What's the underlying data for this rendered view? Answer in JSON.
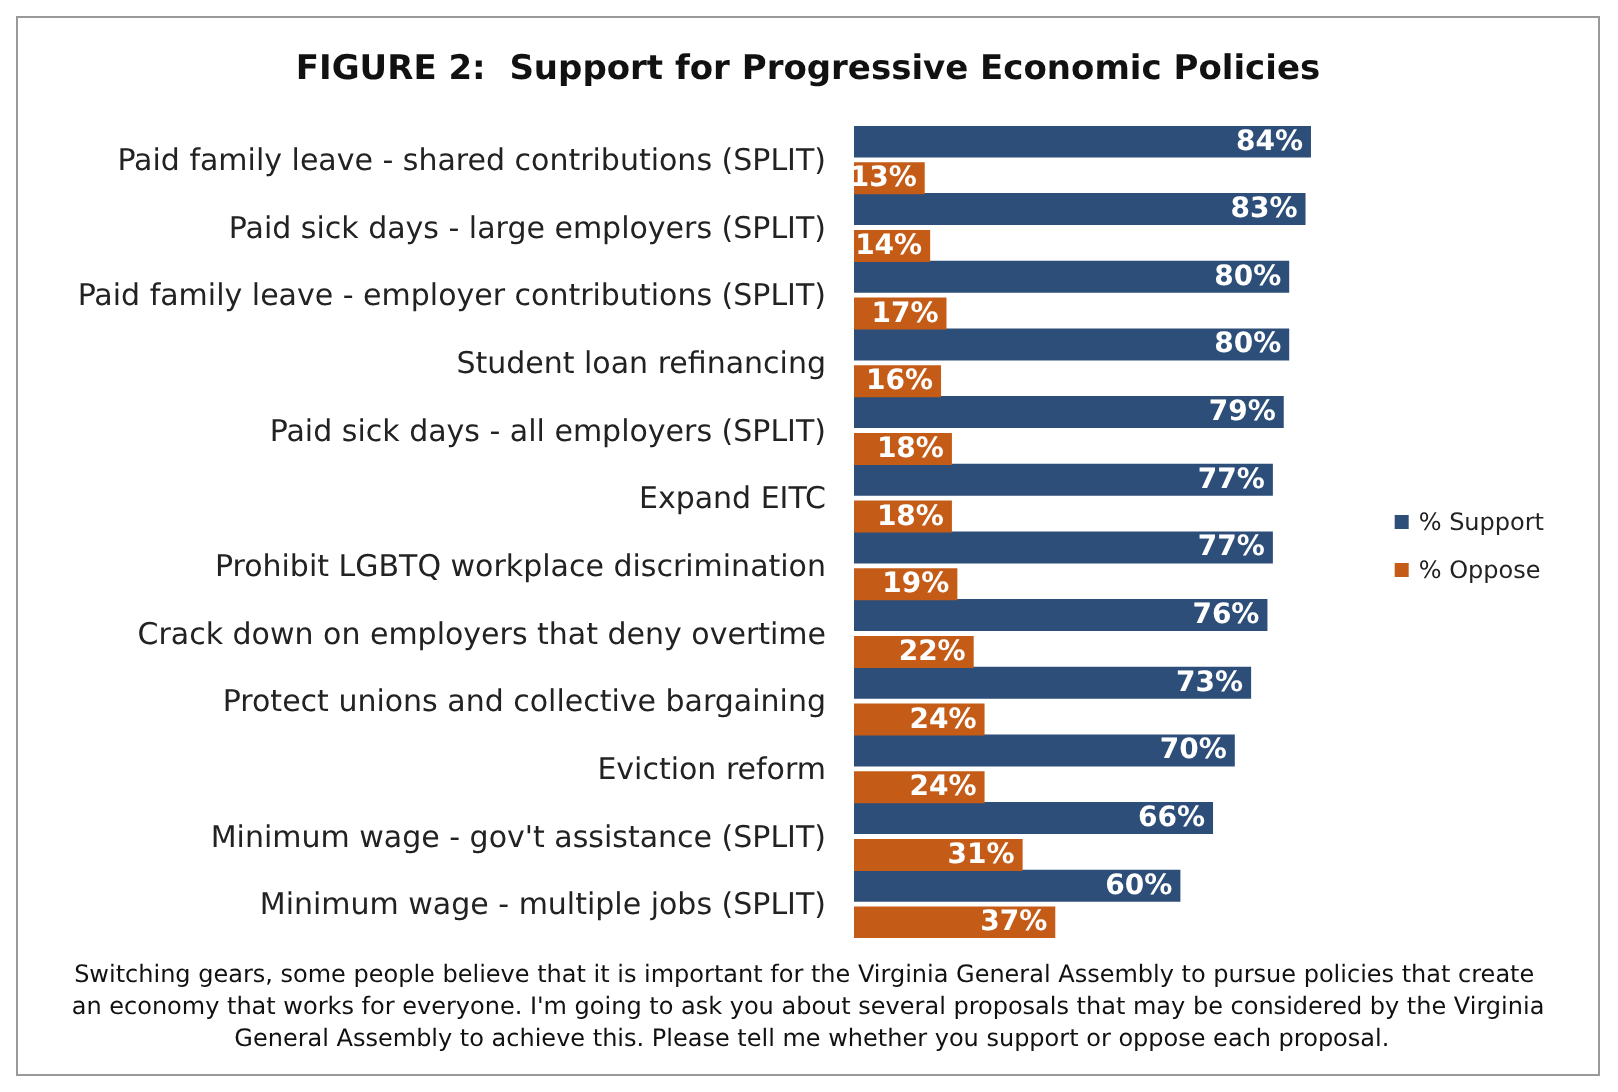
{
  "chart_data": {
    "type": "bar",
    "orientation": "horizontal",
    "title": "FIGURE 2:  Support for Progressive Economic Policies",
    "categories": [
      "Paid family leave - shared contributions (SPLIT)",
      "Paid sick days - large employers (SPLIT)",
      "Paid family leave - employer contributions (SPLIT)",
      "Student loan refinancing",
      "Paid sick days - all employers (SPLIT)",
      "Expand EITC",
      "Prohibit LGBTQ workplace discrimination",
      "Crack down on employers that deny overtime",
      "Protect unions and collective bargaining",
      "Eviction reform",
      "Minimum wage - gov't assistance (SPLIT)",
      "Minimum wage - multiple jobs (SPLIT)"
    ],
    "series": [
      {
        "name": "% Support",
        "color": "#2d4e79",
        "values": [
          84,
          83,
          80,
          80,
          79,
          77,
          77,
          76,
          73,
          70,
          66,
          60
        ],
        "value_labels": [
          "84%",
          "83%",
          "80%",
          "80%",
          "79%",
          "77%",
          "77%",
          "76%",
          "73%",
          "70%",
          "66%",
          "60%"
        ]
      },
      {
        "name": "% Oppose",
        "color": "#c45c17",
        "values": [
          13,
          14,
          17,
          16,
          18,
          18,
          19,
          22,
          24,
          24,
          31,
          37
        ],
        "value_labels": [
          "13%",
          "14%",
          "17%",
          "16%",
          "18%",
          "18%",
          "19%",
          "22%",
          "24%",
          "24%",
          "31%",
          "37%"
        ]
      }
    ],
    "legend": "right",
    "annotations": [
      "Switching gears, some people believe that it is important for the Virginia General Assembly to pursue policies that create an economy that works for everyone. I'm going to ask you about several proposals that may be considered by the Virginia General Assembly to achieve this. Please tell me whether you support or oppose each proposal."
    ]
  }
}
